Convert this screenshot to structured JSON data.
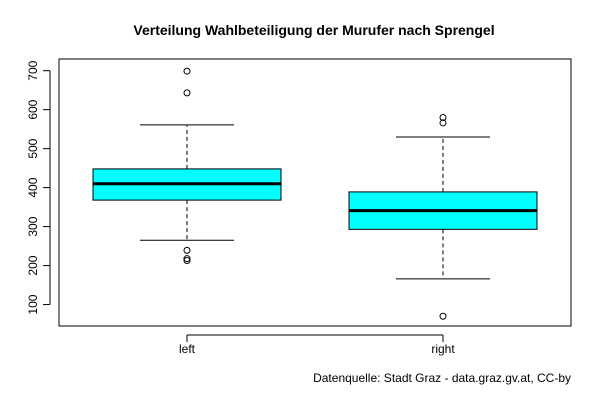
{
  "chart_data": {
    "type": "boxplot",
    "title": "Verteilung Wahlbeteiligung der Murufer nach Sprengel",
    "xlabel": "",
    "ylabel": "",
    "ylim": [
      45,
      730
    ],
    "yticks": [
      100,
      200,
      300,
      400,
      500,
      600,
      700
    ],
    "grid": false,
    "legend": "none",
    "fill_color": "#00ffff",
    "categories": [
      "left",
      "right"
    ],
    "boxes": [
      {
        "category": "left",
        "whisker_low": 265,
        "q1": 368,
        "median": 410,
        "q3": 448,
        "whisker_high": 561,
        "outliers": [
          213,
          218,
          239,
          643,
          699
        ]
      },
      {
        "category": "right",
        "whisker_low": 166,
        "q1": 293,
        "median": 341,
        "q3": 389,
        "whisker_high": 530,
        "outliers": [
          70,
          566,
          580
        ]
      }
    ],
    "footnote": "Datenquelle: Stadt Graz - data.graz.gv.at, CC-by"
  }
}
